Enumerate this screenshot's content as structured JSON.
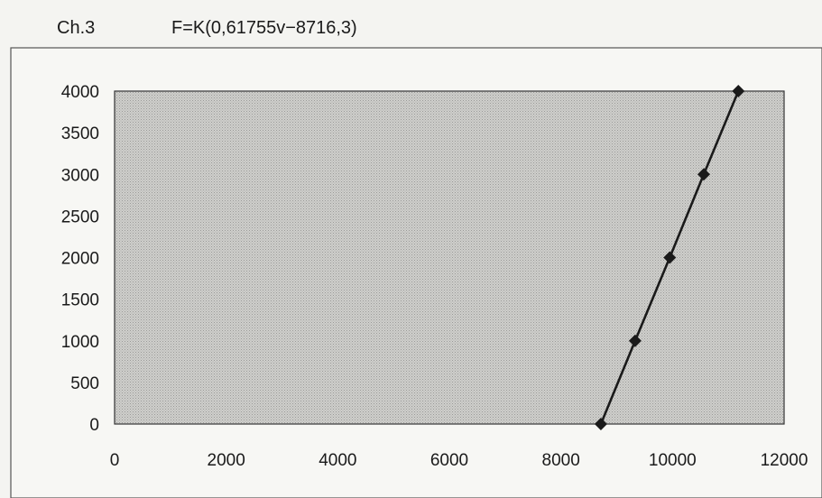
{
  "chart_data": {
    "type": "scatter",
    "channel": "Ch.3",
    "formula": "F=K(0,61755v−8716,3)",
    "x": [
      8716,
      9330,
      9950,
      10560,
      11180
    ],
    "y": [
      0,
      1000,
      2000,
      3000,
      4000
    ],
    "xlim": [
      0,
      12000
    ],
    "ylim": [
      0,
      4000
    ],
    "xticks": [
      "0",
      "2000",
      "4000",
      "6000",
      "8000",
      "10000",
      "12000"
    ],
    "yticks": [
      "0",
      "500",
      "1000",
      "1500",
      "2000",
      "2500",
      "3000",
      "3500",
      "4000"
    ],
    "grid": false,
    "legend": "none",
    "colors": {
      "plot_fill": "#d2d2cf",
      "line": "#1a1a1a",
      "marker": "#1a1a1a"
    }
  }
}
